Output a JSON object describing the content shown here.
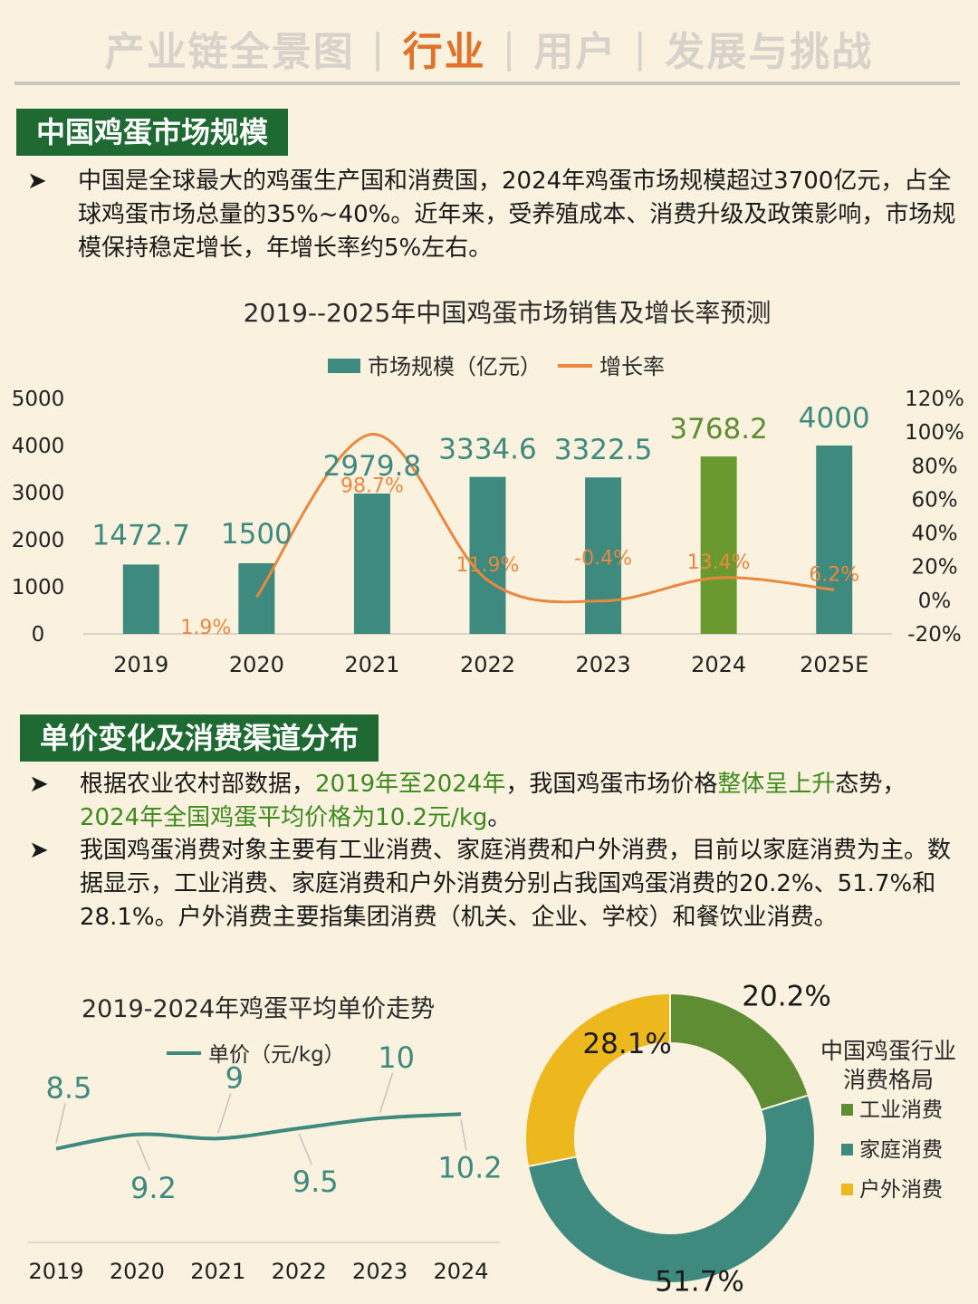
{
  "nav": {
    "items": [
      "产业链全景图",
      "行业",
      "用户",
      "发展与挑战"
    ],
    "active_index": 1,
    "separator": "|",
    "active_color": "#e0732b",
    "inactive_color": "#d7d2ca"
  },
  "section1": {
    "title": "中国鸡蛋市场规模",
    "bullet_symbol": "➤",
    "paragraph": "中国是全球最大的鸡蛋生产国和消费国，2024年鸡蛋市场规模超过3700亿元，占全球鸡蛋市场总量的35%~40%。近年来，受养殖成本、消费升级及政策影响，市场规模保持稳定增长，年增长率约5%左右。"
  },
  "section2": {
    "title": "单价变化及消费渠道分布",
    "bullet_symbol": "➤",
    "p1": {
      "a": "根据农业农村部数据，",
      "b": "2019年至2024年",
      "c": "，我国鸡蛋市场价格",
      "d": "整体呈上升",
      "e": "态势，",
      "f": "2024年全国鸡蛋平均价格为",
      "g": "10.2元/kg",
      "h": "。"
    },
    "p2": "我国鸡蛋消费对象主要有工业消费、家庭消费和户外消费，目前以家庭消费为主。数据显示，工业消费、家庭消费和户外消费分别占我国鸡蛋消费的20.2%、51.7%和28.1%。户外消费主要指集团消费（机关、企业、学校）和餐饮业消费。"
  },
  "chart_data": [
    {
      "type": "bar",
      "title": "2019--2025年中国鸡蛋市场销售及增长率预测",
      "categories": [
        "2019",
        "2020",
        "2021",
        "2022",
        "2023",
        "2024",
        "2025E"
      ],
      "series": [
        {
          "name": "市场规模（亿元）",
          "type": "bar",
          "axis": "left",
          "values": [
            1472.7,
            1500,
            2979.8,
            3334.6,
            3322.5,
            3768.2,
            4000
          ],
          "labels": [
            "1472.7",
            "1500",
            "2979.8",
            "3334.6",
            "3322.5",
            "3768.2",
            "4000"
          ],
          "color": "#3e8a7e",
          "highlight_index": 5,
          "highlight_color": "#6a9a2f"
        },
        {
          "name": "增长率",
          "type": "line",
          "axis": "right",
          "values": [
            null,
            1.9,
            98.7,
            11.9,
            -0.4,
            13.4,
            6.2
          ],
          "labels": [
            "",
            "1.9%",
            "98.7%",
            "11.9%",
            "-0.4%",
            "13.4%",
            "6.2%"
          ],
          "color": "#e9883e",
          "smooth": true
        }
      ],
      "y_left": {
        "range": [
          0,
          5000
        ],
        "ticks": [
          "0",
          "1000",
          "2000",
          "3000",
          "4000",
          "5000"
        ]
      },
      "y_right": {
        "range": [
          -20,
          120
        ],
        "ticks": [
          "-20%",
          "0%",
          "20%",
          "40%",
          "60%",
          "80%",
          "100%",
          "120%"
        ]
      },
      "legend_position": "top-center",
      "grid": false
    },
    {
      "type": "line",
      "title": "2019-2024年鸡蛋平均单价走势",
      "categories": [
        "2019",
        "2020",
        "2021",
        "2022",
        "2023",
        "2024"
      ],
      "series": [
        {
          "name": "单价（元/kg）",
          "values": [
            8.5,
            9.2,
            9,
            9.5,
            10,
            10.2
          ],
          "labels": [
            "8.5",
            "9.2",
            "9",
            "9.5",
            "10",
            "10.2"
          ],
          "color": "#3e8a7e",
          "smooth": true
        }
      ],
      "legend_position": "top-center",
      "grid": false
    },
    {
      "type": "pie",
      "donut": true,
      "title": "中国鸡蛋行业消费格局",
      "slices": [
        {
          "label": "工业消费",
          "value": 20.2,
          "value_label": "20.2%",
          "color": "#5f8d33"
        },
        {
          "label": "家庭消费",
          "value": 51.7,
          "value_label": "51.7%",
          "color": "#3e8a7e"
        },
        {
          "label": "户外消费",
          "value": 28.1,
          "value_label": "28.1%",
          "color": "#edb81d"
        }
      ],
      "legend_position": "right"
    }
  ]
}
